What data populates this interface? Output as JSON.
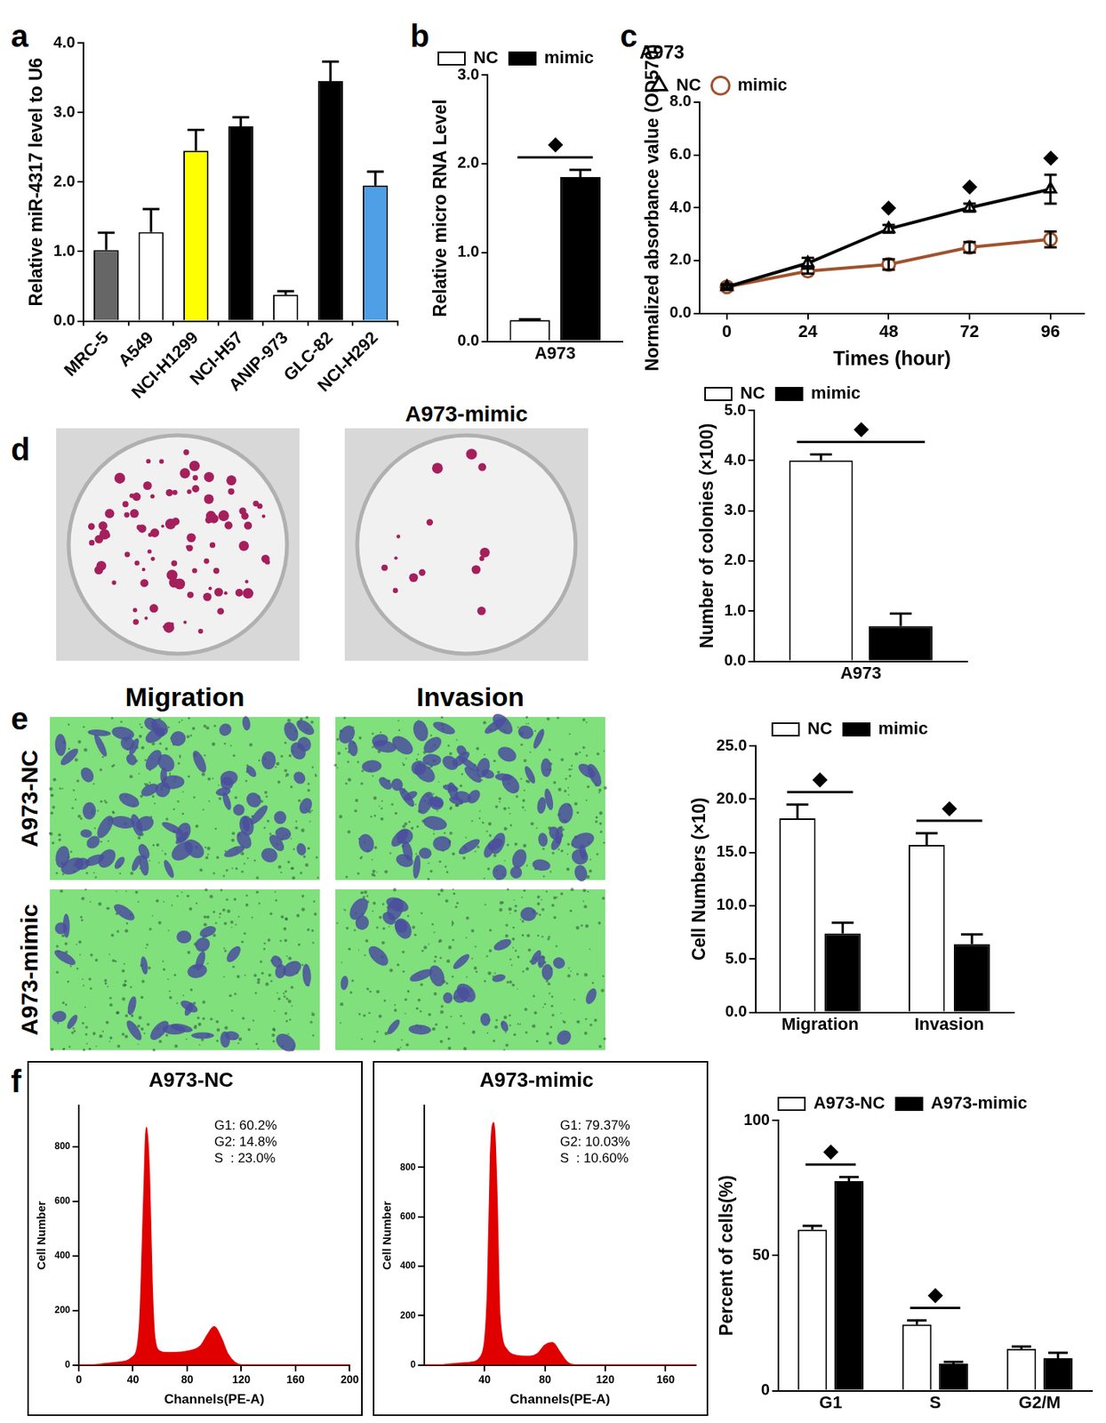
{
  "chart_data": [
    {
      "panel": "a",
      "type": "bar",
      "categories": [
        "MRC-5",
        "A549",
        "NCI-H1299",
        "NCI-H57",
        "ANIP-973",
        "GLC-82",
        "NCI-H292"
      ],
      "values": [
        1.02,
        1.28,
        2.45,
        2.8,
        0.38,
        3.45,
        1.95
      ],
      "errors": [
        0.25,
        0.33,
        0.3,
        0.13,
        0.05,
        0.28,
        0.2
      ],
      "colors": [
        "#666666",
        "#ffffff",
        "#ffff00",
        "#000000",
        "#ffffff",
        "#000000",
        "#4f9fe6"
      ],
      "y_label": "Relative miR-4317 level to U6",
      "ylim": [
        0,
        4
      ],
      "yticks": [
        {
          "value": 0,
          "label": "0.0"
        },
        {
          "value": 1,
          "label": "1.0"
        },
        {
          "value": 2,
          "label": "2.0"
        },
        {
          "value": 3,
          "label": "3.0"
        },
        {
          "value": 4,
          "label": "4.0"
        }
      ],
      "grid": false
    },
    {
      "panel": "b",
      "type": "bar",
      "categories": [
        "A973"
      ],
      "series": [
        {
          "name": "NC",
          "color": "#ffffff",
          "values": [
            0.24
          ],
          "errors": [
            0.01
          ]
        },
        {
          "name": "mimic",
          "color": "#000000",
          "values": [
            1.85
          ],
          "errors": [
            0.08
          ]
        }
      ],
      "y_label": "Relative micro RNA Level",
      "ylim": [
        0,
        3
      ],
      "yticks": [
        {
          "value": 0,
          "label": "0.0"
        },
        {
          "value": 1,
          "label": "1.0"
        },
        {
          "value": 2,
          "label": "2.0"
        },
        {
          "value": 3,
          "label": "3.0"
        }
      ],
      "legend": "top-left",
      "grid": false,
      "annotations": [
        {
          "text": "◆",
          "x": "A973"
        }
      ]
    },
    {
      "panel": "c",
      "type": "line",
      "title": "A973",
      "x": [
        0,
        24,
        48,
        72,
        96
      ],
      "series": [
        {
          "name": "NC",
          "color": "#000000",
          "marker": "triangle",
          "values": [
            1.0,
            1.9,
            3.2,
            4.0,
            4.7
          ],
          "errors": [
            0.1,
            0.2,
            0.15,
            0.15,
            0.55
          ]
        },
        {
          "name": "mimic",
          "color": "#a0522d",
          "marker": "circle",
          "values": [
            1.0,
            1.6,
            1.85,
            2.5,
            2.8
          ],
          "errors": [
            0.05,
            0.1,
            0.2,
            0.2,
            0.3
          ]
        }
      ],
      "x_label": "Times (hour)",
      "y_label": "Normalized absorbance value (OD570)",
      "xlim": [
        -8,
        106
      ],
      "xticks": [
        0,
        24,
        48,
        72,
        96
      ],
      "ylim": [
        0,
        8
      ],
      "yticks": [
        {
          "value": 0,
          "label": "0.0"
        },
        {
          "value": 2,
          "label": "2.0"
        },
        {
          "value": 4,
          "label": "4.0"
        },
        {
          "value": 6,
          "label": "6.0"
        },
        {
          "value": 8,
          "label": "8.0"
        }
      ],
      "legend": "top-left",
      "grid": false,
      "annotations": [
        {
          "text": "◆",
          "x": 48
        },
        {
          "text": "◆",
          "x": 72
        },
        {
          "text": "◆",
          "x": 96
        }
      ]
    },
    {
      "type": "bar",
      "categories": [
        "A973"
      ],
      "series": [
        {
          "name": "NC",
          "color": "#ffffff",
          "values": [
            4.0
          ],
          "errors": [
            0.12
          ]
        },
        {
          "name": "mimic",
          "color": "#000000",
          "values": [
            0.7
          ],
          "errors": [
            0.25
          ]
        }
      ],
      "y_label": "Number of colonies (×100)",
      "ylim": [
        0,
        5
      ],
      "yticks": [
        {
          "value": 0,
          "label": "0.0"
        },
        {
          "value": 1,
          "label": "1.0"
        },
        {
          "value": 2,
          "label": "2.0"
        },
        {
          "value": 3,
          "label": "3.0"
        },
        {
          "value": 4,
          "label": "4.0"
        },
        {
          "value": 5,
          "label": "5.0"
        }
      ],
      "legend": "top-left",
      "grid": false,
      "annotations": [
        {
          "text": "◆",
          "x": "A973"
        }
      ]
    },
    {
      "type": "bar",
      "categories": [
        "Migration",
        "Invasion"
      ],
      "series": [
        {
          "name": "NC",
          "color": "#ffffff",
          "values": [
            18.2,
            15.7
          ],
          "errors": [
            1.3,
            1.1
          ]
        },
        {
          "name": "mimic",
          "color": "#000000",
          "values": [
            7.4,
            6.4
          ],
          "errors": [
            1.0,
            0.9
          ]
        }
      ],
      "y_label": "Cell Numbers (×10)",
      "ylim": [
        0,
        25
      ],
      "yticks": [
        {
          "value": 0,
          "label": "0.0"
        },
        {
          "value": 5,
          "label": "5.0"
        },
        {
          "value": 10,
          "label": "10.0"
        },
        {
          "value": 15,
          "label": "15.0"
        },
        {
          "value": 20,
          "label": "20.0"
        },
        {
          "value": 25,
          "label": "25.0"
        }
      ],
      "legend": "top",
      "grid": false,
      "annotations": [
        {
          "text": "◆",
          "x": "Migration"
        },
        {
          "text": "◆",
          "x": "Invasion"
        }
      ]
    },
    {
      "panel": "f",
      "type": "area",
      "title": "A973-NC",
      "x": [
        0,
        10,
        20,
        30,
        40,
        45,
        48,
        50,
        52,
        54,
        56,
        60,
        65,
        70,
        80,
        90,
        95,
        100,
        105,
        110,
        115,
        120,
        130,
        140,
        160,
        200
      ],
      "values": [
        0,
        0,
        5,
        10,
        30,
        150,
        600,
        870,
        700,
        300,
        100,
        50,
        45,
        45,
        50,
        70,
        110,
        140,
        100,
        40,
        10,
        0,
        0,
        0,
        0,
        0
      ],
      "color": "#e00000",
      "x_label": "Channels(PE-A)",
      "y_label": "Cell Number",
      "xlim": [
        0,
        200
      ],
      "xticks": [
        0,
        40,
        80,
        120,
        160,
        200
      ],
      "ylim": [
        0,
        950
      ],
      "yticks": [
        0,
        200,
        400,
        600,
        800
      ],
      "grid": false,
      "annotations": [
        {
          "text": "G1: 60.2%"
        },
        {
          "text": "G2: 14.8%"
        },
        {
          "text": "S  : 23.0%"
        }
      ]
    },
    {
      "type": "area",
      "title": "A973-mimic",
      "x": [
        0,
        10,
        20,
        30,
        38,
        42,
        44,
        46,
        48,
        50,
        55,
        60,
        70,
        75,
        80,
        85,
        90,
        95,
        100,
        120,
        160,
        180
      ],
      "values": [
        0,
        0,
        5,
        10,
        40,
        300,
        850,
        980,
        700,
        200,
        60,
        40,
        35,
        45,
        80,
        90,
        50,
        10,
        0,
        0,
        0,
        0
      ],
      "color": "#e00000",
      "x_label": "Channels(PE-A)",
      "y_label": "Cell Number",
      "xlim": [
        0,
        180
      ],
      "xticks": [
        40,
        80,
        120,
        160
      ],
      "ylim": [
        0,
        1050
      ],
      "yticks": [
        0,
        200,
        400,
        600,
        800
      ],
      "grid": false,
      "annotations": [
        {
          "text": "G1: 79.37%"
        },
        {
          "text": "G2: 10.03%"
        },
        {
          "text": "S  : 10.60%"
        }
      ]
    },
    {
      "type": "bar",
      "categories": [
        "G1",
        "S",
        "G2/M"
      ],
      "series": [
        {
          "name": "A973-NC",
          "color": "#ffffff",
          "values": [
            59.5,
            24.5,
            15.5
          ],
          "errors": [
            1.5,
            1.5,
            0.8
          ]
        },
        {
          "name": "A973-mimic",
          "color": "#000000",
          "values": [
            77.5,
            10.0,
            12.0
          ],
          "errors": [
            1.5,
            0.6,
            2.0
          ]
        }
      ],
      "y_label": "Percent of cells(%)",
      "ylim": [
        0,
        100
      ],
      "yticks": [
        0,
        50,
        100
      ],
      "legend": "top",
      "grid": false,
      "annotations": [
        {
          "text": "◆",
          "x": "G1"
        },
        {
          "text": "◆",
          "x": "S"
        }
      ]
    }
  ],
  "image_panels": [
    {
      "panel": "d",
      "title": "A973-mimic"
    },
    {
      "panel": "e",
      "columns": [
        "Migration",
        "Invasion"
      ],
      "rows": [
        "A973-NC",
        "A973-mimic"
      ]
    }
  ]
}
